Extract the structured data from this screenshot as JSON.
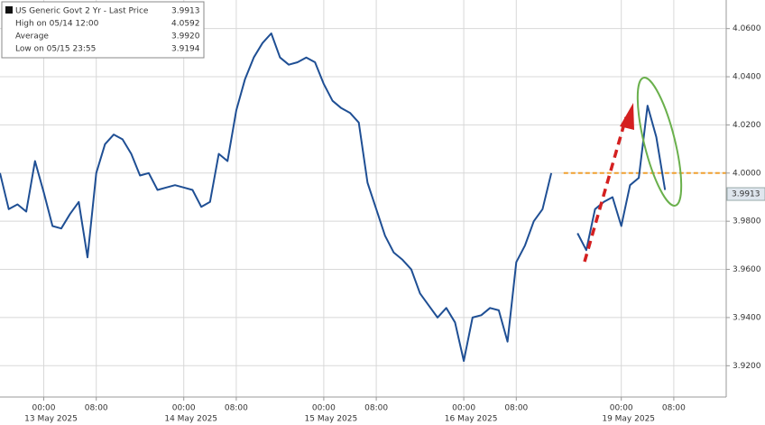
{
  "chart_data": {
    "type": "line",
    "series": [
      {
        "name": "US Generic Govt 2 Yr - Last Price",
        "color": "#1f4f94",
        "values": [
          4.0,
          3.985,
          3.987,
          3.984,
          4.005,
          3.992,
          3.978,
          3.977,
          3.983,
          3.988,
          3.965,
          4.0,
          4.012,
          4.016,
          4.014,
          4.008,
          3.999,
          4.0,
          3.993,
          3.994,
          3.995,
          3.994,
          3.993,
          3.986,
          3.988,
          4.008,
          4.005,
          4.026,
          4.039,
          4.048,
          4.054,
          4.058,
          4.048,
          4.045,
          4.046,
          4.048,
          4.046,
          4.037,
          4.03,
          4.027,
          4.025,
          4.021,
          3.996,
          3.985,
          3.974,
          3.967,
          3.964,
          3.96,
          3.95,
          3.945,
          3.94,
          3.944,
          3.938,
          3.922,
          3.94,
          3.941,
          3.944,
          3.943,
          3.93,
          3.963,
          3.97,
          3.98,
          3.985,
          4.0,
          null,
          null,
          3.975,
          3.968,
          3.985,
          3.988,
          3.99,
          3.978,
          3.995,
          3.998,
          4.028,
          4.015,
          3.993,
          null,
          null,
          null,
          null,
          null,
          null
        ]
      }
    ],
    "categories": [
      null,
      null,
      null,
      null,
      null,
      "00:00",
      null,
      null,
      null,
      null,
      null,
      "08:00",
      null,
      null,
      null,
      null,
      null,
      null,
      null,
      null,
      null,
      "00:00",
      null,
      null,
      null,
      null,
      null,
      "08:00",
      null,
      null,
      null,
      null,
      null,
      null,
      null,
      null,
      null,
      "00:00",
      null,
      null,
      null,
      null,
      null,
      "08:00",
      null,
      null,
      null,
      null,
      null,
      null,
      null,
      null,
      null,
      "00:00",
      null,
      null,
      null,
      null,
      null,
      "08:00",
      null,
      null,
      null,
      null,
      null,
      null,
      null,
      null,
      null,
      null,
      null,
      "00:00",
      null,
      null,
      null,
      null,
      null,
      "08:00",
      null,
      null,
      null,
      null,
      null
    ],
    "dates": [
      null,
      null,
      null,
      null,
      null,
      "13 May 2025",
      null,
      null,
      null,
      null,
      null,
      null,
      null,
      null,
      null,
      null,
      null,
      null,
      null,
      null,
      null,
      "14 May 2025",
      null,
      null,
      null,
      null,
      null,
      null,
      null,
      null,
      null,
      null,
      null,
      null,
      null,
      null,
      null,
      "15 May 2025",
      null,
      null,
      null,
      null,
      null,
      null,
      null,
      null,
      null,
      null,
      null,
      null,
      null,
      null,
      null,
      "16 May 2025",
      null,
      null,
      null,
      null,
      null,
      null,
      null,
      null,
      null,
      null,
      null,
      null,
      null,
      null,
      null,
      null,
      null,
      "19 May 2025",
      null,
      null,
      null,
      null,
      null,
      null,
      null,
      null,
      null,
      null,
      null
    ],
    "ylim": [
      3.907,
      4.07
    ],
    "yticks": [
      {
        "value": 3.92,
        "label": "3.9200"
      },
      {
        "value": 3.94,
        "label": "3.9400"
      },
      {
        "value": 3.96,
        "label": "3.9600"
      },
      {
        "value": 3.98,
        "label": "3.9800"
      },
      {
        "value": 4.0,
        "label": "4.0000"
      },
      {
        "value": 4.02,
        "label": "4.0200"
      },
      {
        "value": 4.04,
        "label": "4.0400"
      },
      {
        "value": 4.06,
        "label": "4.0600"
      }
    ],
    "grid": true,
    "reference_line": {
      "value": 4.0,
      "color": "#f0a030"
    },
    "last_price": {
      "value": 3.9913,
      "label": "3.9913"
    },
    "legend_stats": [
      {
        "label": "High on 05/14 12:00",
        "value": "4.0592"
      },
      {
        "label": "Average",
        "value": "3.9920"
      },
      {
        "label": "Low on 05/15 23:55",
        "value": "3.9194"
      }
    ]
  }
}
